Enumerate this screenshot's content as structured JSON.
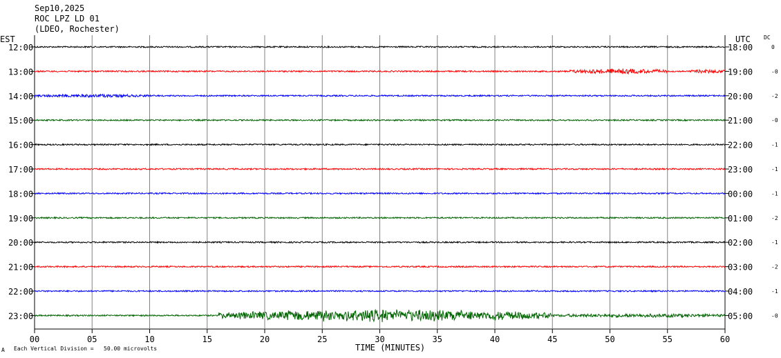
{
  "header": {
    "date": "Sep10,2025",
    "station": "ROC LPZ LD 01",
    "network": "(LDEO, Rochester)"
  },
  "footer": {
    "scale_text": "Each Vertical Division =   50.00 microvolts",
    "corner_mark": "A"
  },
  "chart_data": {
    "type": "line",
    "subtype": "helicorder",
    "title": "ROC LPZ LD 01",
    "xlabel": "TIME (MINUTES)",
    "left_axis_label": "EST",
    "right_axis_label": "UTC",
    "dc_header": "DC",
    "xlim": [
      0,
      60
    ],
    "x_ticks": [
      "00",
      "05",
      "10",
      "15",
      "20",
      "25",
      "30",
      "35",
      "40",
      "45",
      "50",
      "55",
      "60"
    ],
    "grid": true,
    "colors": [
      "#000000",
      "#ff0000",
      "#0000ff",
      "#006400"
    ],
    "rows": [
      {
        "est": "12:00",
        "utc": "18:00",
        "dc": "0",
        "color": "#000000",
        "events": []
      },
      {
        "est": "13:00",
        "utc": "19:00",
        "dc": "-0",
        "color": "#ff0000",
        "events": [
          {
            "start": 46.5,
            "end": 55,
            "amp": 4
          },
          {
            "start": 57,
            "end": 60,
            "amp": 3
          }
        ]
      },
      {
        "est": "14:00",
        "utc": "20:00",
        "dc": "-2",
        "color": "#0000ff",
        "events": [
          {
            "start": 0,
            "end": 10,
            "amp": 2.5
          }
        ]
      },
      {
        "est": "15:00",
        "utc": "21:00",
        "dc": "-0",
        "color": "#006400",
        "events": []
      },
      {
        "est": "16:00",
        "utc": "22:00",
        "dc": "-1",
        "color": "#000000",
        "events": []
      },
      {
        "est": "17:00",
        "utc": "23:00",
        "dc": "-1",
        "color": "#ff0000",
        "events": []
      },
      {
        "est": "18:00",
        "utc": "00:00",
        "dc": "-1",
        "color": "#0000ff",
        "events": []
      },
      {
        "est": "19:00",
        "utc": "01:00",
        "dc": "-2",
        "color": "#006400",
        "events": []
      },
      {
        "est": "20:00",
        "utc": "02:00",
        "dc": "-1",
        "color": "#000000",
        "events": []
      },
      {
        "est": "21:00",
        "utc": "03:00",
        "dc": "-2",
        "color": "#ff0000",
        "events": []
      },
      {
        "est": "22:00",
        "utc": "04:00",
        "dc": "-1",
        "color": "#0000ff",
        "events": []
      },
      {
        "est": "23:00",
        "utc": "05:00",
        "dc": "-0",
        "color": "#006400",
        "events": [
          {
            "start": 16,
            "end": 45,
            "amp": 10
          },
          {
            "start": 45,
            "end": 60,
            "amp": 3
          }
        ]
      }
    ]
  }
}
